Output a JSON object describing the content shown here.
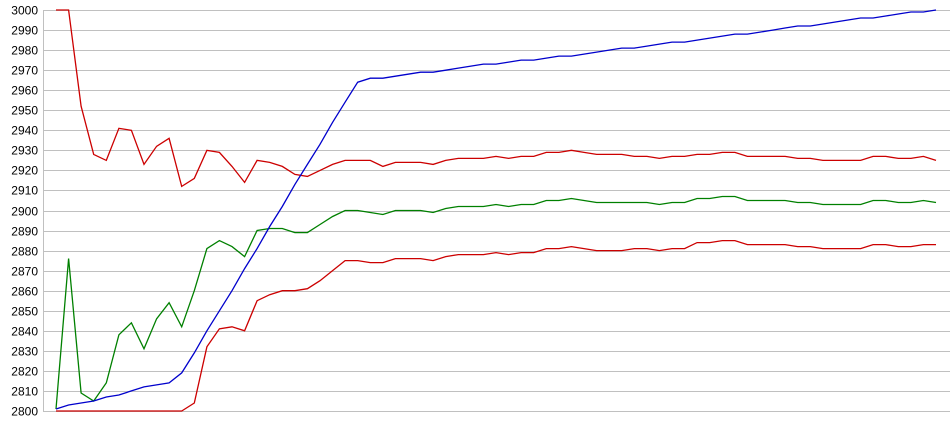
{
  "chart_data": {
    "type": "line",
    "title": "",
    "xlabel": "",
    "ylabel": "",
    "ylim": [
      2800,
      3000
    ],
    "yticks": [
      "2800",
      "2810",
      "2820",
      "2830",
      "2840",
      "2850",
      "2860",
      "2870",
      "2880",
      "2890",
      "2900",
      "2910",
      "2920",
      "2930",
      "2940",
      "2950",
      "2960",
      "2970",
      "2980",
      "2990",
      "3000"
    ],
    "grid": true,
    "legend": "none",
    "x_count": 71,
    "series": [
      {
        "name": "upper-red",
        "color": "#cc0000",
        "values": [
          3000,
          3000,
          2952,
          2928,
          2925,
          2941,
          2940,
          2923,
          2932,
          2936,
          2912,
          2916,
          2930,
          2929,
          2922,
          2914,
          2925,
          2924,
          2922,
          2918,
          2917,
          2920,
          2923,
          2925,
          2925,
          2925,
          2922,
          2924,
          2924,
          2924,
          2923,
          2925,
          2926,
          2926,
          2926,
          2927,
          2926,
          2927,
          2927,
          2929,
          2929,
          2930,
          2929,
          2928,
          2928,
          2928,
          2927,
          2927,
          2926,
          2927,
          2927,
          2928,
          2928,
          2929,
          2929,
          2927,
          2927,
          2927,
          2927,
          2926,
          2926,
          2925,
          2925,
          2925,
          2925,
          2927,
          2927,
          2926,
          2926,
          2927,
          2925
        ]
      },
      {
        "name": "green",
        "color": "#008000",
        "values": [
          2801,
          2876,
          2809,
          2805,
          2814,
          2838,
          2844,
          2831,
          2846,
          2854,
          2842,
          2860,
          2881,
          2885,
          2882,
          2877,
          2890,
          2891,
          2891,
          2889,
          2889,
          2893,
          2897,
          2900,
          2900,
          2899,
          2898,
          2900,
          2900,
          2900,
          2899,
          2901,
          2902,
          2902,
          2902,
          2903,
          2902,
          2903,
          2903,
          2905,
          2905,
          2906,
          2905,
          2904,
          2904,
          2904,
          2904,
          2904,
          2903,
          2904,
          2904,
          2906,
          2906,
          2907,
          2907,
          2905,
          2905,
          2905,
          2905,
          2904,
          2904,
          2903,
          2903,
          2903,
          2903,
          2905,
          2905,
          2904,
          2904,
          2905,
          2904
        ]
      },
      {
        "name": "lower-red",
        "color": "#cc0000",
        "values": [
          2800,
          2800,
          2800,
          2800,
          2800,
          2800,
          2800,
          2800,
          2800,
          2800,
          2800,
          2804,
          2832,
          2841,
          2842,
          2840,
          2855,
          2858,
          2860,
          2860,
          2861,
          2865,
          2870,
          2875,
          2875,
          2874,
          2874,
          2876,
          2876,
          2876,
          2875,
          2877,
          2878,
          2878,
          2878,
          2879,
          2878,
          2879,
          2879,
          2881,
          2881,
          2882,
          2881,
          2880,
          2880,
          2880,
          2881,
          2881,
          2880,
          2881,
          2881,
          2884,
          2884,
          2885,
          2885,
          2883,
          2883,
          2883,
          2883,
          2882,
          2882,
          2881,
          2881,
          2881,
          2881,
          2883,
          2883,
          2882,
          2882,
          2883,
          2883
        ]
      },
      {
        "name": "blue",
        "color": "#0000cc",
        "values": [
          2801,
          2803,
          2804,
          2805,
          2807,
          2808,
          2810,
          2812,
          2813,
          2814,
          2819,
          2829,
          2840,
          2850,
          2860,
          2871,
          2881,
          2892,
          2902,
          2913,
          2923,
          2933,
          2944,
          2954,
          2964,
          2966,
          2966,
          2967,
          2968,
          2969,
          2969,
          2970,
          2971,
          2972,
          2973,
          2973,
          2974,
          2975,
          2975,
          2976,
          2977,
          2977,
          2978,
          2979,
          2980,
          2981,
          2981,
          2982,
          2983,
          2984,
          2984,
          2985,
          2986,
          2987,
          2988,
          2988,
          2989,
          2990,
          2991,
          2992,
          2992,
          2993,
          2994,
          2995,
          2996,
          2996,
          2997,
          2998,
          2999,
          2999,
          3000
        ]
      }
    ]
  }
}
